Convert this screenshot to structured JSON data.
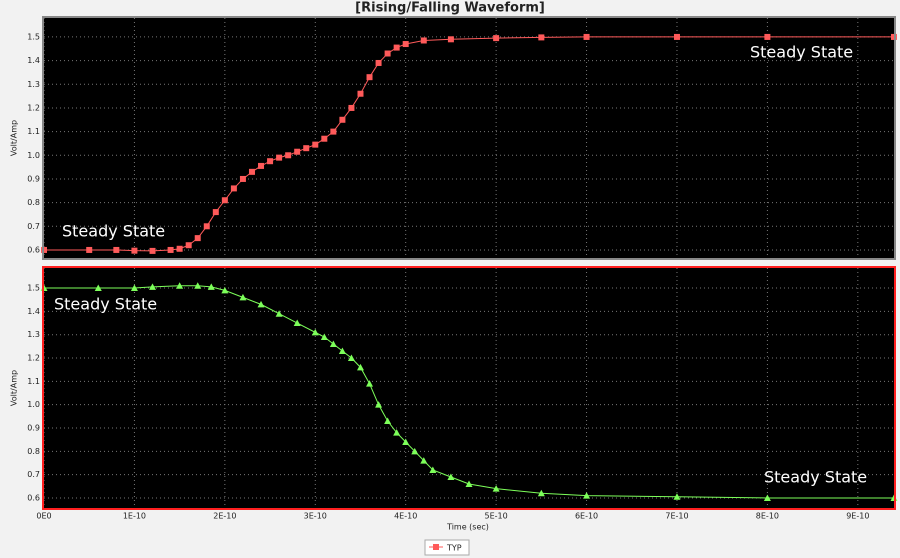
{
  "chart_data": [
    {
      "type": "line",
      "title": "[Rising/Falling Waveform]",
      "ylabel": "Volt/Amp",
      "annotations": [
        "Steady State",
        "Steady State"
      ],
      "x": [
        0,
        5e-11,
        8e-11,
        1e-10,
        1.2e-10,
        1.4e-10,
        1.5e-10,
        1.6e-10,
        1.7e-10,
        1.8e-10,
        1.9e-10,
        2e-10,
        2.1e-10,
        2.2e-10,
        2.3e-10,
        2.4e-10,
        2.5e-10,
        2.6e-10,
        2.7e-10,
        2.8e-10,
        2.9e-10,
        3e-10,
        3.1e-10,
        3.2e-10,
        3.3e-10,
        3.4e-10,
        3.5e-10,
        3.6e-10,
        3.7e-10,
        3.8e-10,
        3.9e-10,
        4e-10,
        4.2e-10,
        4.5e-10,
        5e-10,
        5.5e-10,
        6e-10,
        7e-10,
        8e-10,
        9.4e-10
      ],
      "series": [
        {
          "name": "TYP",
          "color": "#ff5a5a",
          "marker": "square",
          "values": [
            0.6,
            0.6,
            0.6,
            0.597,
            0.596,
            0.6,
            0.605,
            0.62,
            0.65,
            0.7,
            0.76,
            0.81,
            0.86,
            0.9,
            0.93,
            0.955,
            0.975,
            0.99,
            1.0,
            1.015,
            1.03,
            1.045,
            1.07,
            1.1,
            1.15,
            1.2,
            1.26,
            1.33,
            1.39,
            1.43,
            1.455,
            1.47,
            1.485,
            1.49,
            1.495,
            1.498,
            1.5,
            1.5,
            1.5,
            1.5
          ]
        }
      ],
      "xlim": [
        0,
        9.4e-10
      ],
      "ylim": [
        0.566,
        1.58
      ],
      "yticks": [
        0.6,
        0.7,
        0.8,
        0.9,
        {
          "value": 1,
          "label": "1.0"
        },
        1.1,
        1.2,
        1.3,
        1.4,
        1.5
      ],
      "grid": true
    },
    {
      "type": "line",
      "ylabel": "Volt/Amp",
      "xlabel": "Time (sec)",
      "annotations": [
        "Steady State",
        "Steady State"
      ],
      "x": [
        0,
        6e-11,
        1e-10,
        1.2e-10,
        1.5e-10,
        1.7e-10,
        1.85e-10,
        2e-10,
        2.2e-10,
        2.4e-10,
        2.6e-10,
        2.8e-10,
        3e-10,
        3.1e-10,
        3.2e-10,
        3.3e-10,
        3.4e-10,
        3.5e-10,
        3.6e-10,
        3.7e-10,
        3.8e-10,
        3.9e-10,
        4e-10,
        4.1e-10,
        4.2e-10,
        4.3e-10,
        4.5e-10,
        4.7e-10,
        5e-10,
        5.5e-10,
        6e-10,
        7e-10,
        8e-10,
        9.4e-10
      ],
      "series": [
        {
          "color": "#7dff5a",
          "marker": "triangle",
          "values": [
            1.5,
            1.5,
            1.5,
            1.505,
            1.51,
            1.51,
            1.505,
            1.49,
            1.46,
            1.43,
            1.39,
            1.35,
            1.31,
            1.29,
            1.26,
            1.23,
            1.2,
            1.16,
            1.09,
            1.0,
            0.93,
            0.88,
            0.84,
            0.8,
            0.76,
            0.72,
            0.69,
            0.66,
            0.64,
            0.62,
            0.61,
            0.605,
            0.6,
            0.6
          ]
        }
      ],
      "xlim": [
        0,
        9.4e-10
      ],
      "ylim": [
        0.557,
        1.586
      ],
      "xticks": [
        {
          "value": 0,
          "label": "0E0"
        },
        {
          "value": 1e-10,
          "label": "1E-10"
        },
        {
          "value": 2e-10,
          "label": "2E-10"
        },
        {
          "value": 3e-10,
          "label": "3E-10"
        },
        {
          "value": 4e-10,
          "label": "4E-10"
        },
        {
          "value": 5e-10,
          "label": "5E-10"
        },
        {
          "value": 6e-10,
          "label": "6E-10"
        },
        {
          "value": 7e-10,
          "label": "7E-10"
        },
        {
          "value": 8e-10,
          "label": "8E-10"
        },
        {
          "value": 9e-10,
          "label": "9E-10"
        }
      ],
      "yticks": [
        0.6,
        0.7,
        0.8,
        0.9,
        {
          "value": 1,
          "label": "1.0"
        },
        1.1,
        1.2,
        1.3,
        1.4,
        1.5
      ],
      "grid": true
    }
  ]
}
